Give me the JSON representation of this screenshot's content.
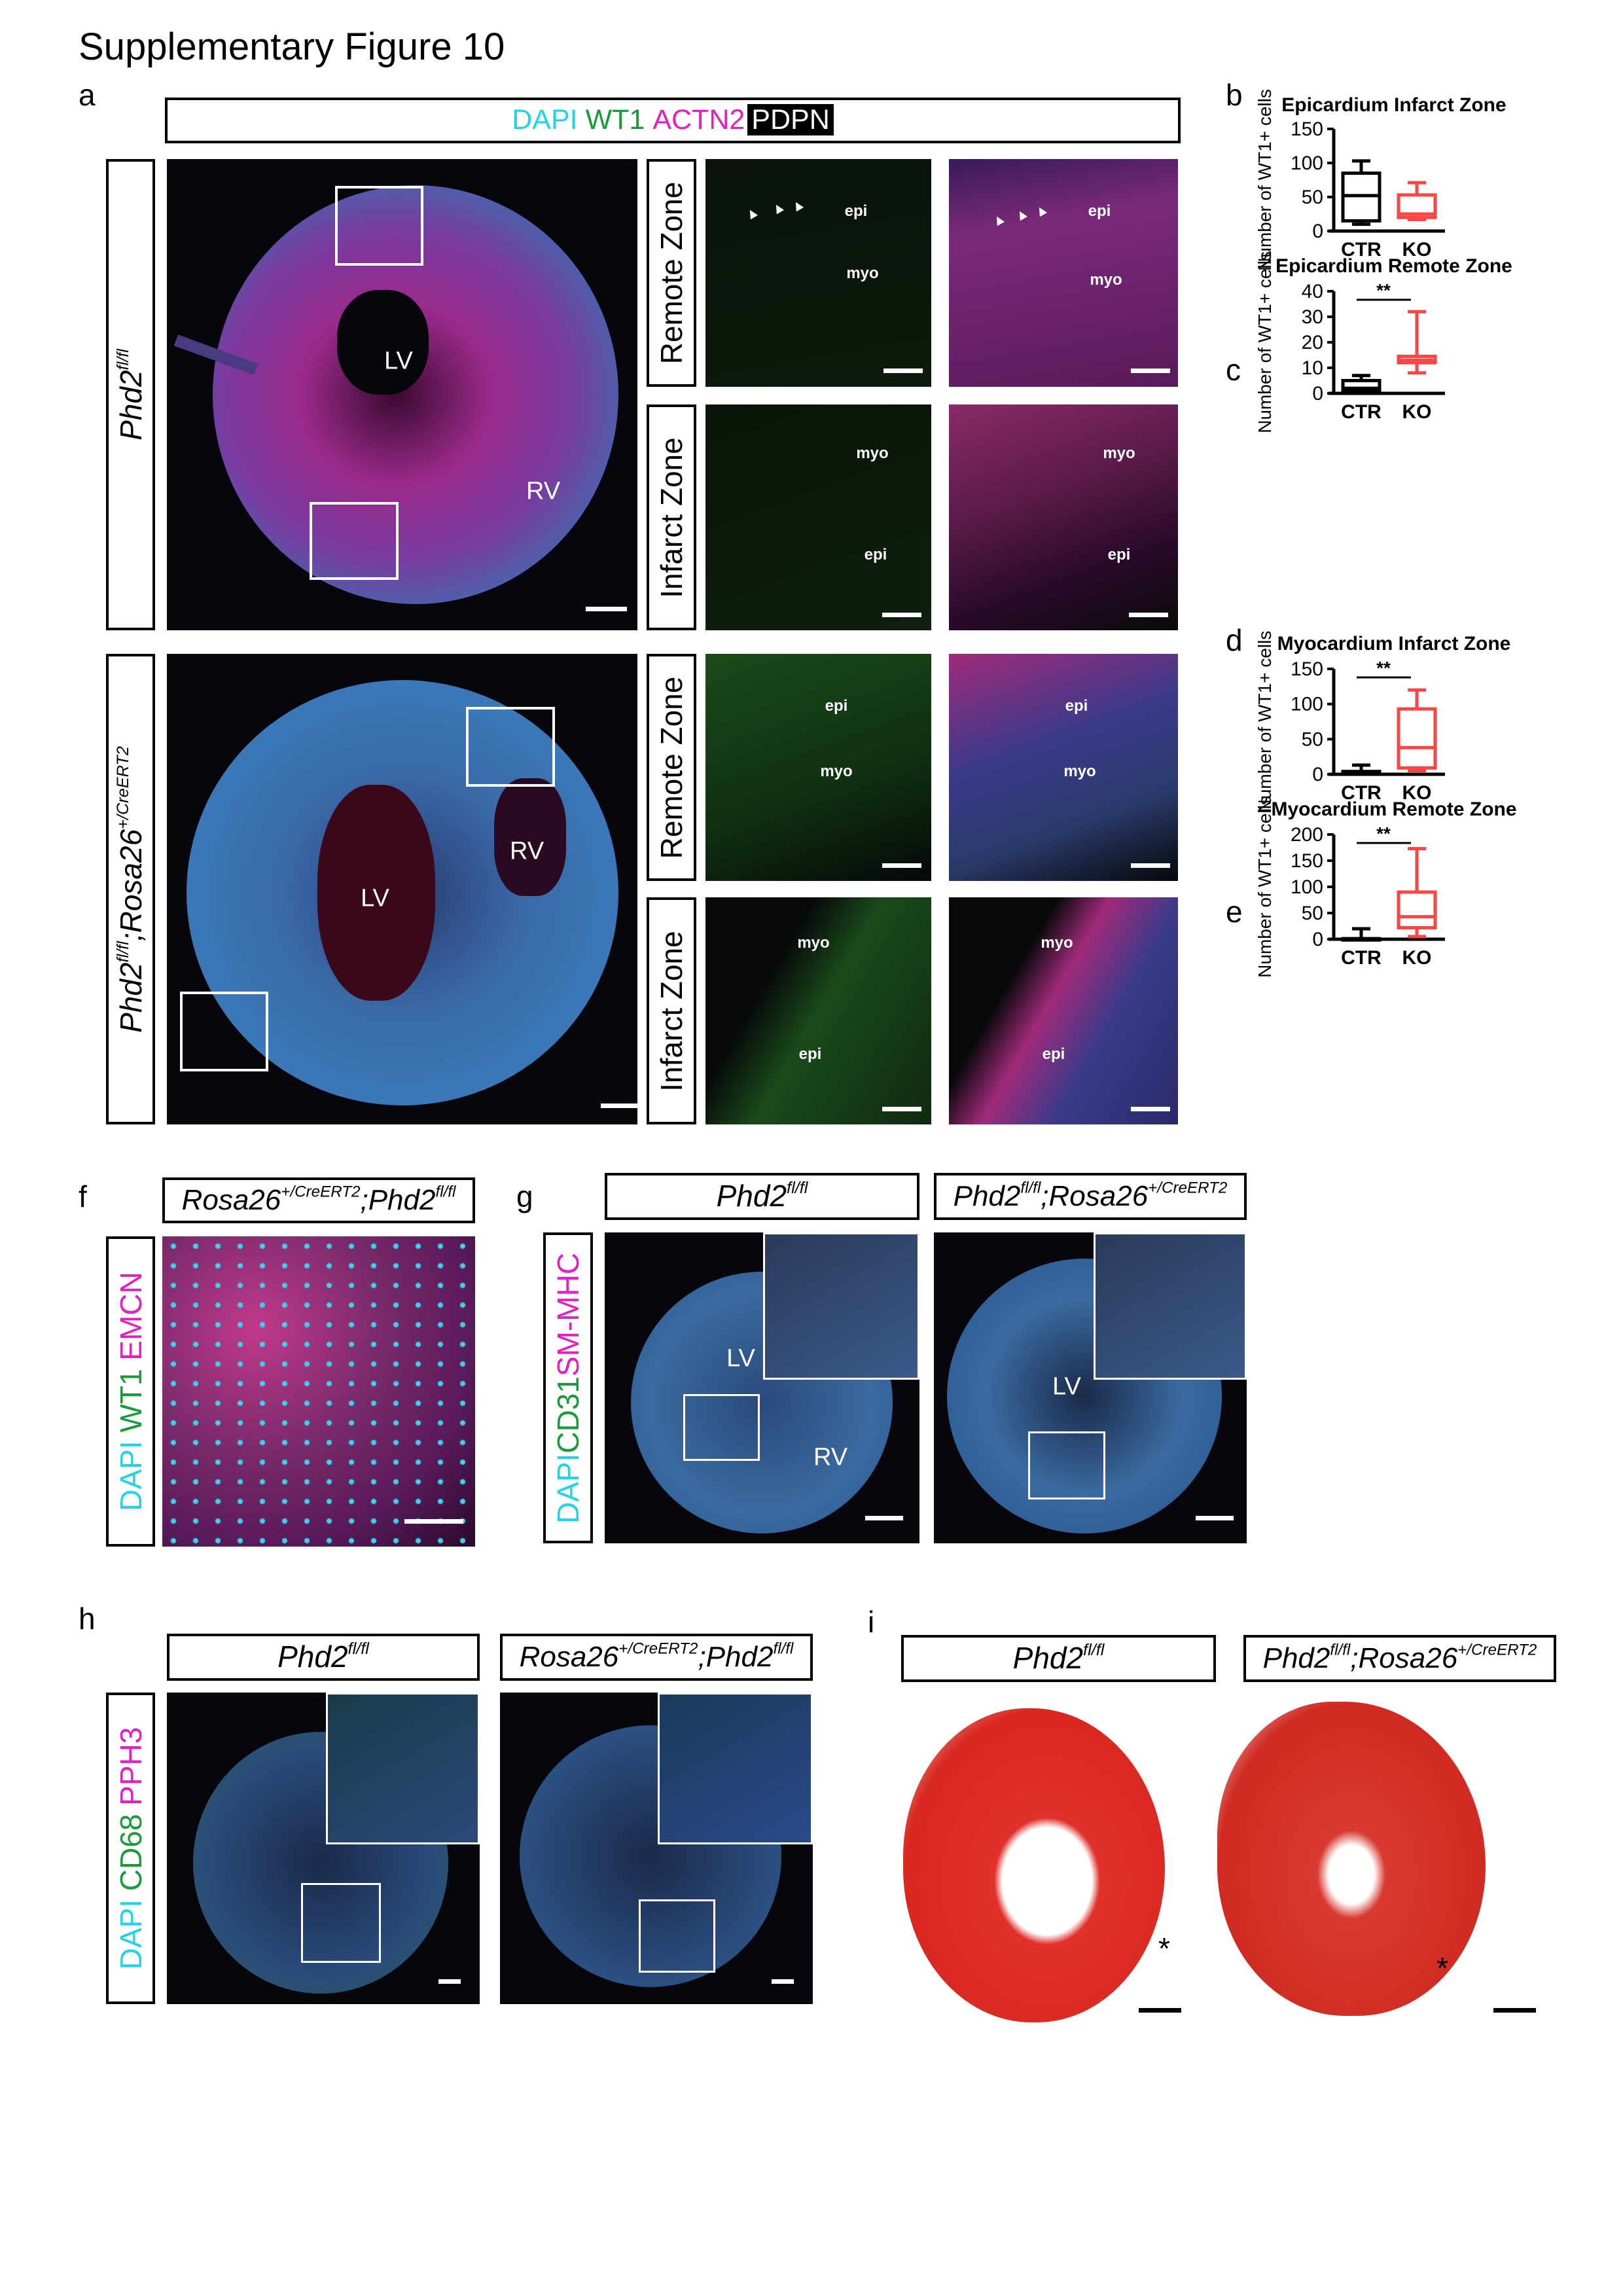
{
  "title": "Supplementary Figure 10",
  "panels": {
    "a": "a",
    "b": "b",
    "c": "c",
    "d": "d",
    "e": "e",
    "f": "f",
    "g": "g",
    "h": "h",
    "i": "i"
  },
  "legend_a": {
    "dapi": "DAPI",
    "wt1": "WT1",
    "actn2": "ACTN2",
    "pdpn": "PDPN"
  },
  "genotypes": {
    "ctrl_base": "Phd2",
    "ctrl_sup": "fl/fl",
    "ko_base1": "Phd2",
    "ko_sup1": "fl/fl",
    "ko_base2": ";Rosa26",
    "ko_sup2": "+/CreERT2",
    "alt_base1": "Rosa26",
    "alt_sup1": "+/CreERT2",
    "alt_base2": ";Phd2",
    "alt_sup2": "fl/fl"
  },
  "zones": {
    "remote": "Remote Zone",
    "infarct": "Infarct Zone"
  },
  "annotations": {
    "lv": "LV",
    "rv": "RV",
    "epi": "epi",
    "myo": "myo",
    "asterisk": "*"
  },
  "stains_f": {
    "dapi": "DAPI",
    "wt1": " WT1",
    "emcn": " EMCN"
  },
  "stains_g": {
    "dapi": "DAPI",
    "cd31": "CD31",
    "smmhc": "SM-MHC"
  },
  "stains_h": {
    "dapi": "DAPI",
    "cd68": " CD68",
    "pph3": " PPH3"
  },
  "chart_data": [
    {
      "type": "box",
      "panel": "b",
      "title": "Epicardium Infarct Zone",
      "ylabel": "Number of WT1+ cells",
      "categories": [
        "CTR",
        "KO"
      ],
      "ylim": [
        0,
        150
      ],
      "yticks": [
        0,
        50,
        100,
        150
      ],
      "significance": "",
      "series": [
        {
          "name": "CTR",
          "color": "#000000",
          "min": 10,
          "q1": 15,
          "median": 52,
          "q3": 85,
          "max": 103
        },
        {
          "name": "KO",
          "color": "#ff4444",
          "min": 17,
          "q1": 20,
          "median": 25,
          "q3": 53,
          "max": 71
        }
      ]
    },
    {
      "type": "box",
      "panel": "c",
      "title": "Epicardium Remote Zone",
      "ylabel": "Number of WT1+ cells",
      "categories": [
        "CTR",
        "KO"
      ],
      "ylim": [
        0,
        40
      ],
      "yticks": [
        0,
        10,
        20,
        30,
        40
      ],
      "significance": "**",
      "series": [
        {
          "name": "CTR",
          "color": "#000000",
          "min": 0,
          "q1": 1,
          "median": 2,
          "q3": 5,
          "max": 7
        },
        {
          "name": "KO",
          "color": "#ff4444",
          "min": 8,
          "q1": 12,
          "median": 13,
          "q3": 14.5,
          "max": 32
        }
      ]
    },
    {
      "type": "box",
      "panel": "d",
      "title": "Myocardium Infarct Zone",
      "ylabel": "Number of WT1+ cells",
      "categories": [
        "CTR",
        "KO"
      ],
      "ylim": [
        0,
        150
      ],
      "yticks": [
        0,
        50,
        100,
        150
      ],
      "significance": "**",
      "series": [
        {
          "name": "CTR",
          "color": "#000000",
          "min": 0,
          "q1": 1,
          "median": 2,
          "q3": 4,
          "max": 13
        },
        {
          "name": "KO",
          "color": "#ff4444",
          "min": 5,
          "q1": 9,
          "median": 38,
          "q3": 93,
          "max": 120
        }
      ]
    },
    {
      "type": "box",
      "panel": "e",
      "title": "Myocardium Remote Zone",
      "ylabel": "Number of WT1+ cells",
      "categories": [
        "CTR",
        "KO"
      ],
      "ylim": [
        0,
        200
      ],
      "yticks": [
        0,
        50,
        100,
        150,
        200
      ],
      "significance": "**",
      "series": [
        {
          "name": "CTR",
          "color": "#000000",
          "min": 0,
          "q1": 0,
          "median": 1,
          "q3": 1,
          "max": 20
        },
        {
          "name": "KO",
          "color": "#ff4444",
          "min": 5,
          "q1": 22,
          "median": 43,
          "q3": 90,
          "max": 173
        }
      ]
    }
  ]
}
